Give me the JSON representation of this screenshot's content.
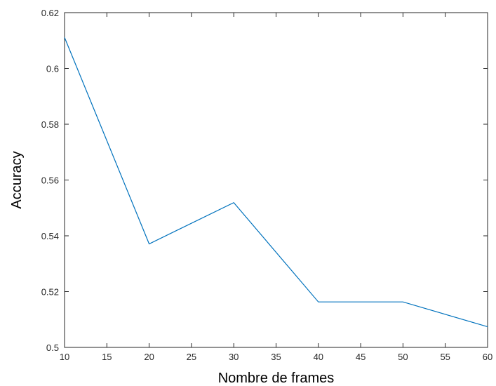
{
  "chart_data": {
    "type": "line",
    "title": "",
    "xlabel": "Nombre de frames",
    "ylabel": "Accuracy",
    "xlim": [
      10,
      60
    ],
    "ylim": [
      0.5,
      0.62
    ],
    "grid": false,
    "x_ticks": [
      "10",
      "15",
      "20",
      "25",
      "30",
      "35",
      "40",
      "45",
      "50",
      "55",
      "60"
    ],
    "y_ticks": [
      "0.5",
      "0.52",
      "0.54",
      "0.56",
      "0.58",
      "0.6",
      "0.62"
    ],
    "series": [
      {
        "color": "#0072bd",
        "x": [
          10,
          20,
          30,
          40,
          50,
          60
        ],
        "y": [
          0.6111,
          0.5371,
          0.5519,
          0.5163,
          0.5163,
          0.5074
        ]
      }
    ]
  }
}
